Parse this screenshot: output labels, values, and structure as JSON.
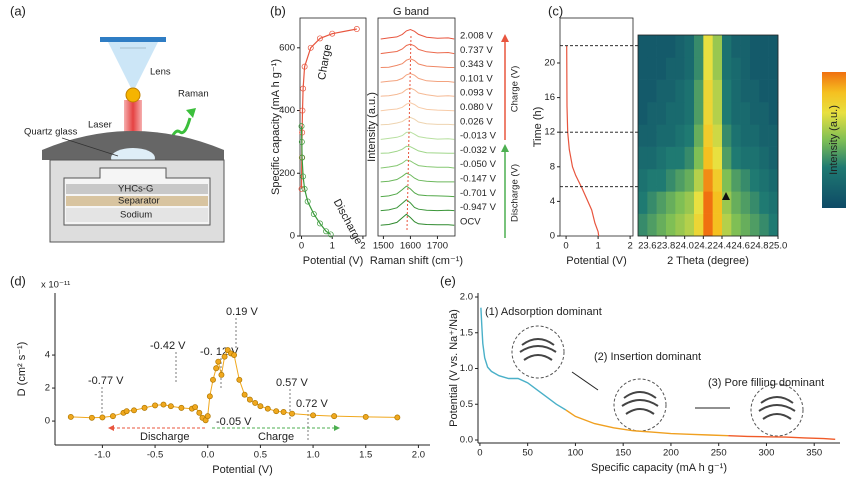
{
  "diagram": {
    "panel_label": "(a)",
    "lens": "Lens",
    "raman": "Raman",
    "laser": "Laser",
    "quartz": "Quartz glass",
    "electrode": "YHCs-G",
    "separator": "Separator",
    "sodium": "Sodium"
  },
  "chart_data": [
    {
      "type": "line",
      "panel_label": "(b)",
      "x_label": "Potential (V)",
      "y_label": "Specific capacity (mA h g⁻¹)",
      "xlim": [
        -0.05,
        2.1
      ],
      "xticks": [
        0,
        1,
        2
      ],
      "ylim": [
        0,
        695
      ],
      "yticks": [
        0,
        200,
        400,
        600
      ],
      "series": [
        {
          "name": "Charge",
          "color": "#e8553e",
          "x": [
            0.0,
            0.01,
            0.02,
            0.03,
            0.05,
            0.1,
            0.3,
            0.6,
            1.0,
            1.8
          ],
          "values": [
            150,
            250,
            330,
            400,
            470,
            540,
            600,
            630,
            645,
            660
          ]
        },
        {
          "name": "Discharge",
          "color": "#3a9a3a",
          "x": [
            0.0,
            0.01,
            0.02,
            0.05,
            0.1,
            0.2,
            0.4,
            0.6,
            0.8,
            0.95
          ],
          "values": [
            350,
            300,
            250,
            190,
            150,
            110,
            70,
            40,
            15,
            5
          ]
        }
      ]
    },
    {
      "type": "spectra",
      "annotation": "G band",
      "x_label": "Raman shift (cm⁻¹)",
      "y_label": "Intensity (a.u.)",
      "xlim": [
        1480,
        1765
      ],
      "xticks": [
        1500,
        1600,
        1700
      ],
      "x": [
        1490,
        1520,
        1550,
        1570,
        1585,
        1600,
        1615,
        1630,
        1660,
        1700,
        1740,
        1762
      ],
      "series": [
        {
          "name": "2.008 V",
          "color": "#e8553e",
          "values": [
            0.3,
            0.6,
            0.9,
            1.6,
            2.6,
            3.0,
            2.5,
            1.6,
            0.8,
            0.5,
            0.6,
            0.3
          ]
        },
        {
          "name": "0.737 V",
          "color": "#ec6b4e",
          "values": [
            0.2,
            0.5,
            0.8,
            1.5,
            2.5,
            2.9,
            2.4,
            1.4,
            0.7,
            0.4,
            0.5,
            0.2
          ]
        },
        {
          "name": "0.343 V",
          "color": "#ef8866",
          "values": [
            0.3,
            0.4,
            0.9,
            1.4,
            2.4,
            2.8,
            2.3,
            1.3,
            0.7,
            0.5,
            0.3,
            0.3
          ]
        },
        {
          "name": "0.101 V",
          "color": "#f3a37f",
          "values": [
            0.2,
            0.5,
            0.7,
            1.3,
            2.3,
            2.7,
            2.2,
            1.3,
            0.6,
            0.4,
            0.4,
            0.2
          ]
        },
        {
          "name": "0.093 V",
          "color": "#f5b994",
          "values": [
            0.3,
            0.4,
            0.8,
            1.3,
            2.2,
            2.6,
            2.1,
            1.2,
            0.7,
            0.3,
            0.4,
            0.3
          ]
        },
        {
          "name": "0.080 V",
          "color": "#f7cba8",
          "values": [
            0.2,
            0.5,
            0.7,
            1.2,
            2.1,
            2.5,
            2.0,
            1.2,
            0.6,
            0.4,
            0.3,
            0.2
          ]
        },
        {
          "name": "0.026 V",
          "color": "#eed4b0",
          "values": [
            0.3,
            0.4,
            0.8,
            1.2,
            2.0,
            2.4,
            1.9,
            1.1,
            0.6,
            0.4,
            0.4,
            0.3
          ]
        },
        {
          "name": "-0.013 V",
          "color": "#b8e0a0",
          "values": [
            0.2,
            0.5,
            0.8,
            1.3,
            2.2,
            2.3,
            1.7,
            1.0,
            0.6,
            0.3,
            0.4,
            0.2
          ]
        },
        {
          "name": "-0.032 V",
          "color": "#a0d68a",
          "values": [
            0.3,
            0.4,
            0.9,
            1.5,
            2.3,
            2.2,
            1.6,
            1.0,
            0.5,
            0.4,
            0.3,
            0.3
          ]
        },
        {
          "name": "-0.050 V",
          "color": "#86c872",
          "values": [
            0.2,
            0.5,
            0.9,
            1.6,
            2.5,
            2.2,
            1.5,
            0.9,
            0.6,
            0.4,
            0.4,
            0.2
          ]
        },
        {
          "name": "-0.147 V",
          "color": "#6cb85c",
          "values": [
            0.3,
            0.5,
            1.0,
            1.9,
            2.8,
            2.3,
            1.4,
            0.8,
            0.5,
            0.3,
            0.3,
            0.3
          ]
        },
        {
          "name": "-0.701 V",
          "color": "#52a848",
          "values": [
            0.2,
            0.4,
            1.0,
            2.2,
            3.2,
            2.4,
            1.3,
            0.7,
            0.5,
            0.4,
            0.3,
            0.2
          ]
        },
        {
          "name": "-0.947 V",
          "color": "#3c963a",
          "values": [
            0.3,
            0.5,
            1.1,
            2.4,
            3.4,
            2.5,
            1.2,
            0.7,
            0.4,
            0.3,
            0.4,
            0.3
          ]
        },
        {
          "name": "OCV",
          "color": "#2f8a2e",
          "values": [
            0.2,
            0.4,
            1.0,
            2.3,
            3.3,
            2.4,
            1.2,
            0.6,
            0.4,
            0.3,
            0.3,
            0.2
          ]
        }
      ],
      "arrows": [
        {
          "label": "Charge (V)",
          "color": "#e8553e"
        },
        {
          "label": "Discharge (V)",
          "color": "#4caf50"
        }
      ]
    },
    {
      "type": "line",
      "panel_label": "(c)",
      "x_label": "Potential (V)",
      "y_label": "Time (h)",
      "xlim": [
        -0.19,
        2.09
      ],
      "xticks": [
        0,
        1,
        2
      ],
      "ylim": [
        0,
        25.2
      ],
      "yticks": [
        0,
        4,
        8,
        12,
        16,
        20
      ],
      "reference_lines": [
        5.7,
        12,
        22
      ],
      "series": [
        {
          "color": "#e8553e",
          "x": [
            0.02,
            0.03,
            0.05,
            0.1,
            0.2,
            0.3,
            0.5,
            0.8,
            0.9,
            1.0,
            1.02
          ],
          "values": [
            22,
            15,
            12,
            10,
            8,
            7,
            5.5,
            3,
            1.5,
            0.5,
            0
          ]
        }
      ]
    },
    {
      "type": "heatmap",
      "x_label": "2 Theta (degree)",
      "colorbar_label": "Intensity (a.u.)",
      "xlim": [
        23.5,
        25.0
      ],
      "ylim": [
        0,
        23.2
      ],
      "xticks": [
        23.6,
        23.8,
        {
          "value": 24,
          "label": "24.0"
        },
        24.2,
        24.4,
        24.6,
        24.8,
        {
          "value": 25,
          "label": "25.0"
        }
      ],
      "values": [
        [
          0.35,
          0.4,
          0.45,
          0.5,
          0.55,
          0.6,
          0.75,
          1.0,
          0.85,
          0.6,
          0.5,
          0.45,
          0.4,
          0.35,
          0.3
        ],
        [
          0.3,
          0.35,
          0.4,
          0.45,
          0.5,
          0.55,
          0.7,
          1.0,
          0.85,
          0.55,
          0.45,
          0.4,
          0.35,
          0.3,
          0.25
        ],
        [
          0.25,
          0.3,
          0.3,
          0.35,
          0.4,
          0.45,
          0.6,
          0.95,
          0.8,
          0.5,
          0.4,
          0.35,
          0.3,
          0.25,
          0.2
        ],
        [
          0.2,
          0.2,
          0.25,
          0.3,
          0.3,
          0.35,
          0.5,
          0.85,
          0.7,
          0.4,
          0.3,
          0.25,
          0.25,
          0.2,
          0.15
        ],
        [
          0.15,
          0.15,
          0.2,
          0.2,
          0.25,
          0.3,
          0.45,
          0.8,
          0.65,
          0.35,
          0.25,
          0.2,
          0.2,
          0.15,
          0.15
        ],
        [
          0.1,
          0.15,
          0.15,
          0.2,
          0.2,
          0.25,
          0.4,
          0.75,
          0.6,
          0.3,
          0.2,
          0.2,
          0.15,
          0.15,
          0.1
        ],
        [
          0.1,
          0.1,
          0.15,
          0.15,
          0.2,
          0.25,
          0.4,
          0.75,
          0.6,
          0.3,
          0.2,
          0.15,
          0.15,
          0.1,
          0.1
        ],
        [
          0.1,
          0.1,
          0.1,
          0.15,
          0.15,
          0.2,
          0.35,
          0.7,
          0.55,
          0.25,
          0.2,
          0.15,
          0.1,
          0.1,
          0.1
        ],
        [
          0.1,
          0.1,
          0.1,
          0.1,
          0.15,
          0.2,
          0.35,
          0.7,
          0.55,
          0.25,
          0.15,
          0.15,
          0.1,
          0.1,
          0.1
        ]
      ]
    },
    {
      "type": "line",
      "panel_label": "(d)",
      "x_label": "Potential (V)",
      "y_label": "D (cm² s⁻¹)",
      "y_scale_label": "x 10⁻¹¹",
      "xlim": [
        -1.45,
        2.11
      ],
      "xticks": [
        {
          "value": -1,
          "label": "-1.0"
        },
        -0.5,
        {
          "value": 0,
          "label": "0.0"
        },
        0.5,
        {
          "value": 1,
          "label": "1.0"
        },
        1.5,
        {
          "value": 2,
          "label": "2.0"
        }
      ],
      "ylim": [
        -1.45,
        7.76
      ],
      "yticks": [
        0,
        2,
        4
      ],
      "markers": true,
      "annotations": [
        "-0.77 V",
        "-0.42 V",
        "-0. 12 V",
        "0.19 V",
        "-0.05 V",
        "0.57 V",
        "0.72 V",
        "Discharge",
        "Charge"
      ],
      "series": [
        {
          "color": "#f0a81e",
          "x": [
            -1.3,
            -1.1,
            -1.0,
            -0.9,
            -0.8,
            -0.77,
            -0.7,
            -0.6,
            -0.5,
            -0.42,
            -0.35,
            -0.25,
            -0.15,
            -0.12,
            -0.08,
            -0.05,
            -0.02,
            0.0,
            0.02,
            0.05,
            0.08,
            0.1,
            0.13,
            0.16,
            0.19,
            0.22,
            0.25,
            0.3,
            0.35,
            0.4,
            0.45,
            0.5,
            0.57,
            0.65,
            0.72,
            0.8,
            1.0,
            1.2,
            1.5,
            1.8
          ],
          "values": [
            0.25,
            0.2,
            0.22,
            0.3,
            0.5,
            0.6,
            0.65,
            0.8,
            0.95,
            1.0,
            0.9,
            0.8,
            0.75,
            0.85,
            0.5,
            0.2,
            0.05,
            0.3,
            1.5,
            2.5,
            3.2,
            3.6,
            2.8,
            3.9,
            4.3,
            4.1,
            4.0,
            2.5,
            1.6,
            1.3,
            1.1,
            0.9,
            0.75,
            0.6,
            0.55,
            0.45,
            0.35,
            0.3,
            0.25,
            0.22
          ]
        }
      ]
    },
    {
      "type": "line",
      "panel_label": "(e)",
      "x_label": "Specific capacity (mA h g⁻¹)",
      "y_label": "Potential (V vs. Na⁺/Na)",
      "xlim": [
        -2,
        377
      ],
      "xticks": [
        0,
        50,
        100,
        150,
        200,
        250,
        300,
        350
      ],
      "ylim": [
        -0.042,
        2.056
      ],
      "yticks": [
        {
          "value": 0,
          "label": "0.0"
        },
        0.5,
        {
          "value": 1,
          "label": "1.0"
        },
        1.5,
        {
          "value": 2,
          "label": "2.0"
        }
      ],
      "series": [
        {
          "name": "(1) Adsorption dominant",
          "color": "#4ab0c8",
          "x": [
            1,
            2,
            3,
            5,
            8,
            12,
            20,
            30,
            40,
            50,
            60,
            70,
            80,
            90
          ],
          "values": [
            1.85,
            1.6,
            1.35,
            1.15,
            1.02,
            0.96,
            0.9,
            0.86,
            0.86,
            0.8,
            0.7,
            0.6,
            0.5,
            0.42
          ]
        },
        {
          "name": "(2) Insertion dominant",
          "color": "#f0a020",
          "x": [
            90,
            100,
            120,
            140,
            160,
            180,
            200,
            220,
            240,
            260
          ],
          "values": [
            0.42,
            0.33,
            0.23,
            0.17,
            0.13,
            0.11,
            0.09,
            0.08,
            0.07,
            0.06
          ]
        },
        {
          "name": "(3) Pore filling dominant",
          "color": "#f05a28",
          "x": [
            260,
            280,
            300,
            320,
            340,
            360,
            372
          ],
          "values": [
            0.06,
            0.05,
            0.045,
            0.04,
            0.03,
            0.02,
            0.01
          ]
        }
      ]
    }
  ]
}
